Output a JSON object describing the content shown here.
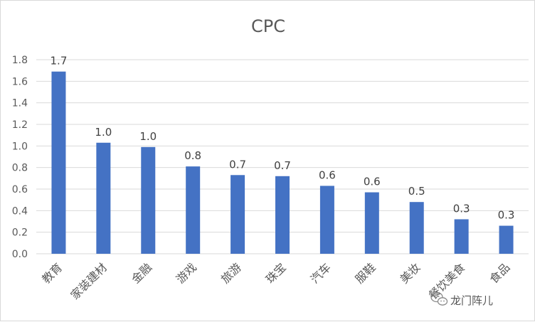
{
  "chart_data": {
    "type": "bar",
    "title": "CPC",
    "xlabel": "",
    "ylabel": "",
    "categories": [
      "教育",
      "家装建材",
      "金融",
      "游戏",
      "旅游",
      "珠宝",
      "汽车",
      "服鞋",
      "美妆",
      "餐饮美食",
      "食品"
    ],
    "values": [
      1.69,
      1.03,
      0.99,
      0.81,
      0.73,
      0.72,
      0.63,
      0.57,
      0.48,
      0.32,
      0.26
    ],
    "data_labels": [
      "1.7",
      "1.0",
      "1.0",
      "0.8",
      "0.7",
      "0.7",
      "0.6",
      "0.6",
      "0.5",
      "0.3",
      "0.3"
    ],
    "ylim": [
      0,
      1.8
    ],
    "yticks": [
      "0.0",
      "0.2",
      "0.4",
      "0.6",
      "0.8",
      "1.0",
      "1.2",
      "1.4",
      "1.6",
      "1.8"
    ],
    "grid": true,
    "legend": "none",
    "bar_color": "#4472c4"
  },
  "watermark": {
    "text": "龙门阵儿",
    "icon": "wechat-icon"
  }
}
